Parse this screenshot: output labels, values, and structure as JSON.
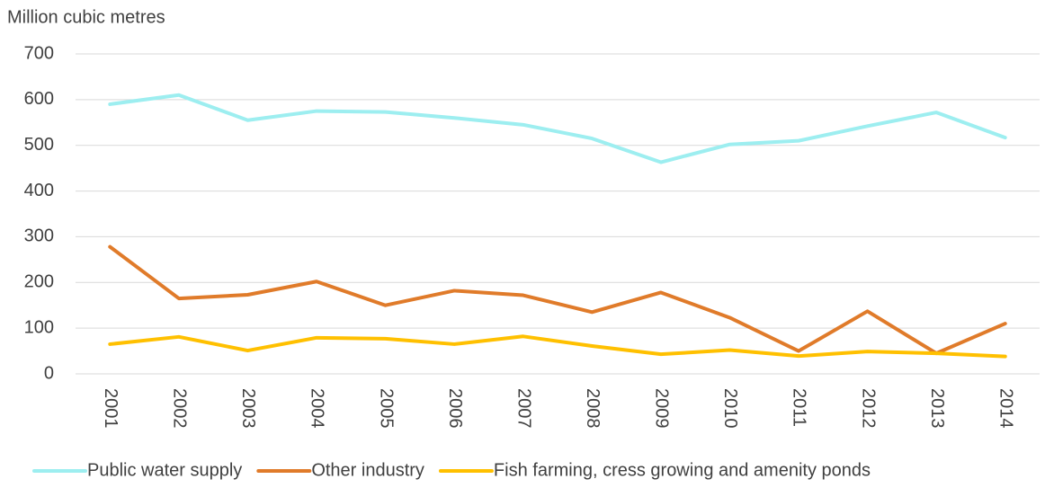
{
  "chart_data": {
    "type": "line",
    "y_axis_label": "Million cubic metres",
    "categories": [
      "2001",
      "2002",
      "2003",
      "2004",
      "2005",
      "2006",
      "2007",
      "2008",
      "2009",
      "2010",
      "2011",
      "2012",
      "2013",
      "2014"
    ],
    "series": [
      {
        "name": "Public water supply",
        "color": "#9deef0",
        "values": [
          590,
          610,
          555,
          575,
          573,
          560,
          545,
          515,
          463,
          502,
          510,
          542,
          572,
          517
        ]
      },
      {
        "name": "Other industry",
        "color": "#e07b2a",
        "values": [
          278,
          165,
          173,
          202,
          150,
          182,
          172,
          135,
          178,
          123,
          50,
          137,
          45,
          110
        ]
      },
      {
        "name": "Fish farming, cress growing and amenity ponds",
        "color": "#ffc000",
        "values": [
          65,
          81,
          51,
          79,
          77,
          65,
          82,
          61,
          43,
          52,
          39,
          49,
          45,
          38
        ]
      }
    ],
    "ylim": [
      0,
      700
    ],
    "yticks": [
      0,
      100,
      200,
      300,
      400,
      500,
      600,
      700
    ],
    "grid": true,
    "legend": "bottom"
  }
}
